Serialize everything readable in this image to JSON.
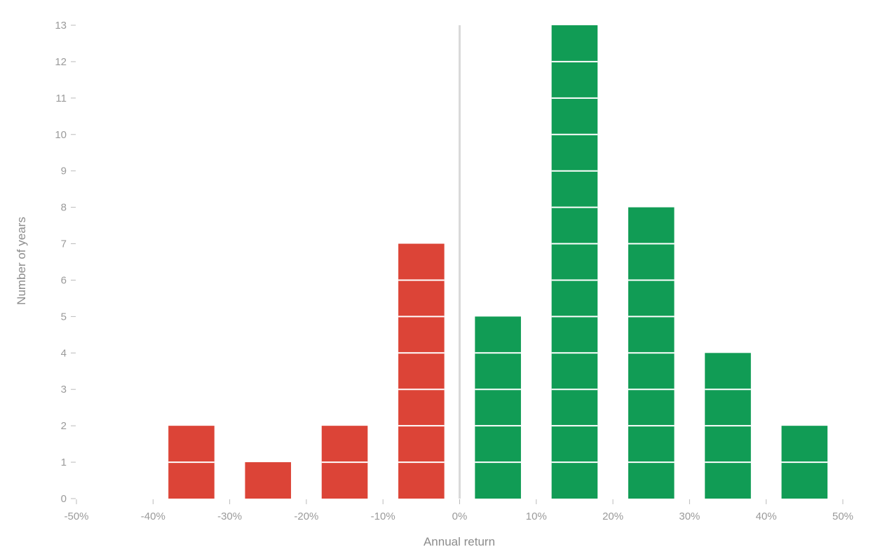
{
  "chart_data": {
    "type": "bar",
    "subtype": "stacked-unit-histogram",
    "xlabel": "Annual return",
    "ylabel": "Number of years",
    "xlim": [
      -50,
      50
    ],
    "ylim": [
      0,
      13
    ],
    "x_ticks": [
      "-50%",
      "-40%",
      "-30%",
      "-20%",
      "-10%",
      "0%",
      "10%",
      "20%",
      "30%",
      "40%",
      "50%"
    ],
    "y_ticks": [
      "0",
      "1",
      "2",
      "3",
      "4",
      "5",
      "6",
      "7",
      "8",
      "9",
      "10",
      "11",
      "12",
      "13"
    ],
    "bins": [
      {
        "bin": [
          -40,
          -30
        ],
        "count": 2
      },
      {
        "bin": [
          -30,
          -20
        ],
        "count": 1
      },
      {
        "bin": [
          -20,
          -10
        ],
        "count": 2
      },
      {
        "bin": [
          -10,
          0
        ],
        "count": 7
      },
      {
        "bin": [
          0,
          10
        ],
        "count": 5
      },
      {
        "bin": [
          10,
          20
        ],
        "count": 13
      },
      {
        "bin": [
          20,
          30
        ],
        "count": 8
      },
      {
        "bin": [
          30,
          40
        ],
        "count": 4
      },
      {
        "bin": [
          40,
          50
        ],
        "count": 2
      }
    ],
    "colors": {
      "negative": "#dc4437",
      "positive": "#119c55",
      "zero_line": "#d9d9d9",
      "ticks": "#bbbbbb"
    },
    "grid": false,
    "legend": "none"
  }
}
